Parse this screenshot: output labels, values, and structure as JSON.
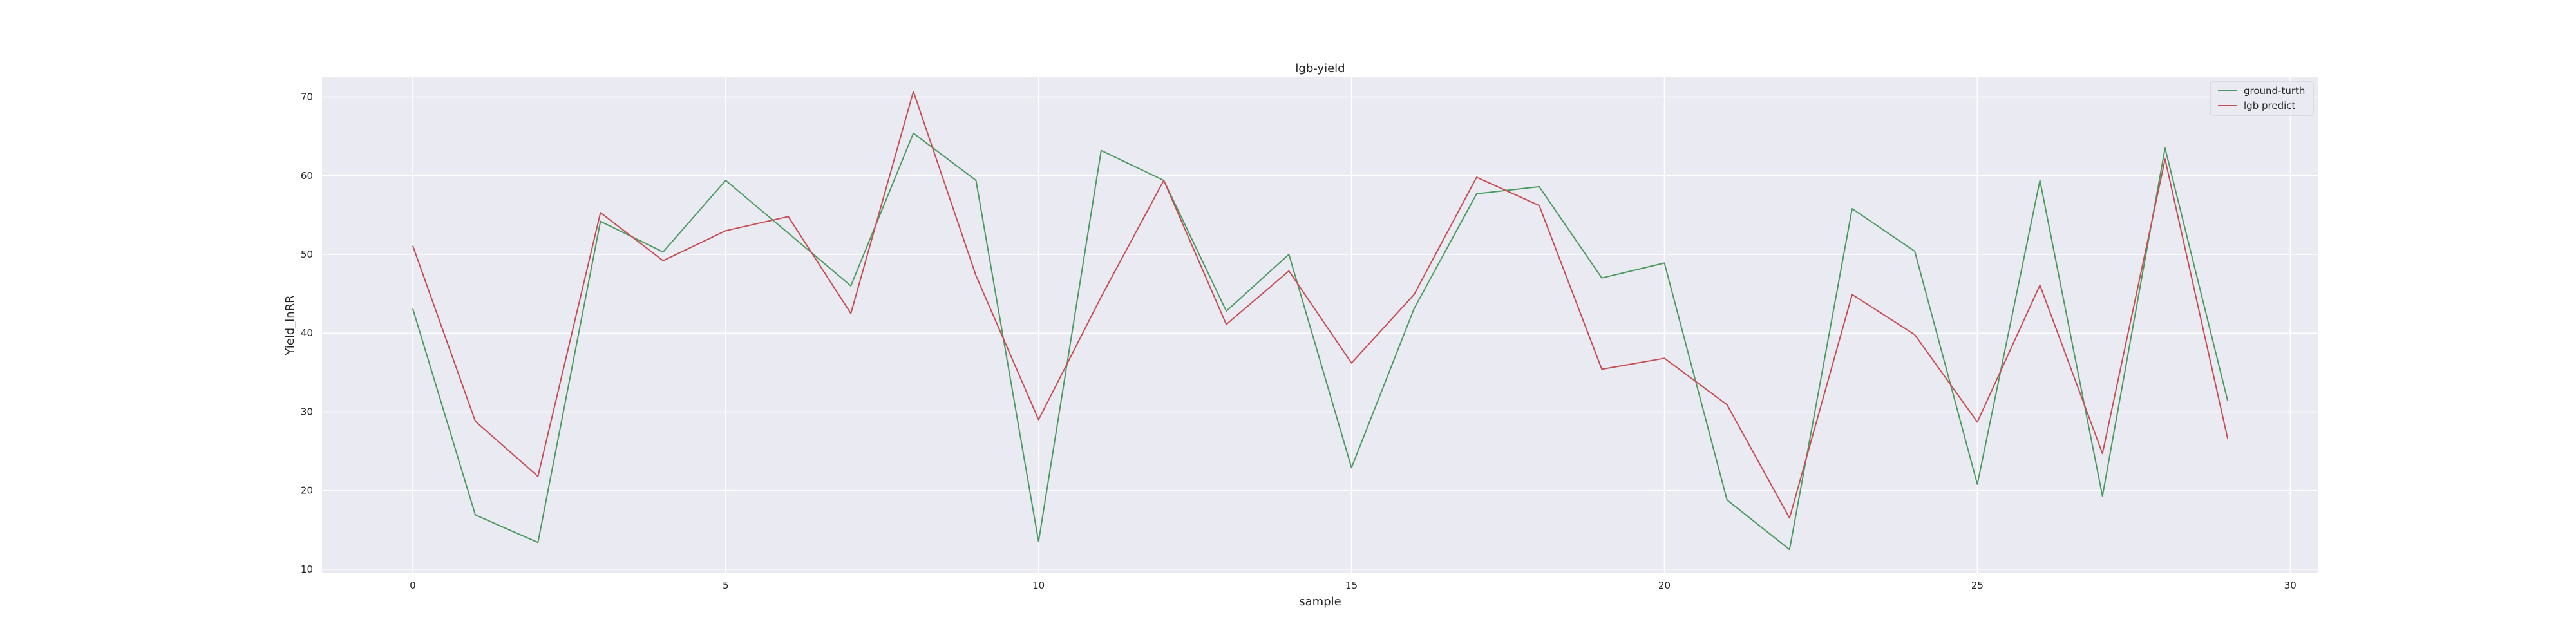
{
  "chart_data": {
    "type": "line",
    "title": "lgb-yield",
    "xlabel": "sample",
    "ylabel": "Yield_lnRR",
    "x": [
      0,
      1,
      2,
      3,
      4,
      5,
      6,
      7,
      8,
      9,
      10,
      11,
      12,
      13,
      14,
      15,
      16,
      17,
      18,
      19,
      20,
      21,
      22,
      23,
      24,
      25,
      26,
      27,
      28,
      29
    ],
    "xlim": [
      -1.45,
      30.45
    ],
    "ylim": [
      9.5,
      72.5
    ],
    "xticks": [
      0,
      5,
      10,
      15,
      20,
      25,
      30
    ],
    "yticks": [
      10,
      20,
      30,
      40,
      50,
      60,
      70
    ],
    "grid": true,
    "legend_position": "top-right",
    "background": "#eaeaf2",
    "series": [
      {
        "name": "ground-turth",
        "color": "#4c9a5f",
        "values": [
          43.1,
          16.9,
          13.4,
          54.2,
          50.3,
          59.4,
          52.7,
          46.0,
          65.4,
          59.4,
          13.5,
          63.2,
          59.4,
          42.8,
          50.0,
          22.9,
          43.1,
          57.7,
          58.6,
          47.0,
          48.9,
          18.8,
          12.5,
          55.8,
          50.4,
          20.8,
          59.4,
          19.3,
          63.5,
          31.4
        ]
      },
      {
        "name": "lgb predict",
        "color": "#c44e52",
        "values": [
          51.1,
          28.8,
          21.8,
          55.3,
          49.2,
          53.0,
          54.8,
          42.5,
          70.7,
          47.3,
          29.0,
          44.6,
          59.4,
          41.1,
          47.9,
          36.2,
          44.9,
          59.8,
          56.2,
          35.4,
          36.8,
          30.9,
          16.5,
          44.9,
          39.8,
          28.7,
          46.1,
          24.7,
          62.1,
          26.6
        ]
      }
    ]
  }
}
